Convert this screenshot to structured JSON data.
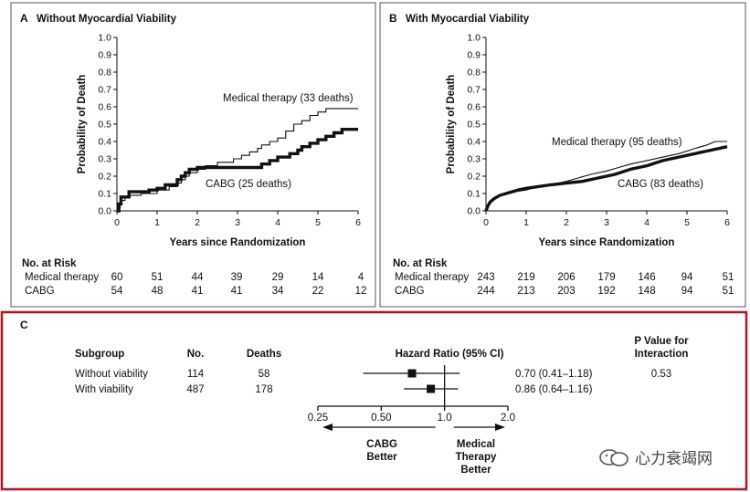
{
  "chart_data": [
    {
      "type": "line",
      "panel": "A",
      "title": "Without Myocardial Viability",
      "xlabel": "Years since Randomization",
      "ylabel": "Probability of Death",
      "xlim": [
        0,
        6
      ],
      "ylim": [
        0,
        1.0
      ],
      "x_ticks": [
        "0",
        "1",
        "2",
        "3",
        "4",
        "5",
        "6"
      ],
      "y_ticks": [
        "0.0",
        "0.1",
        "0.2",
        "0.3",
        "0.4",
        "0.5",
        "0.6",
        "0.7",
        "0.8",
        "0.9",
        "1.0"
      ],
      "series": [
        {
          "name": "Medical therapy",
          "label": "Medical therapy (33 deaths)",
          "style": "thin",
          "points": [
            [
              0,
              0
            ],
            [
              0.04,
              0
            ],
            [
              0.04,
              0.02
            ],
            [
              0.08,
              0.02
            ],
            [
              0.08,
              0.04
            ],
            [
              0.12,
              0.04
            ],
            [
              0.12,
              0.06
            ],
            [
              0.2,
              0.06
            ],
            [
              0.2,
              0.08
            ],
            [
              0.3,
              0.08
            ],
            [
              0.3,
              0.09
            ],
            [
              0.6,
              0.09
            ],
            [
              0.6,
              0.1
            ],
            [
              1.0,
              0.1
            ],
            [
              1.0,
              0.12
            ],
            [
              1.3,
              0.12
            ],
            [
              1.3,
              0.14
            ],
            [
              1.5,
              0.14
            ],
            [
              1.5,
              0.16
            ],
            [
              1.6,
              0.16
            ],
            [
              1.6,
              0.18
            ],
            [
              1.7,
              0.18
            ],
            [
              1.7,
              0.2
            ],
            [
              1.8,
              0.2
            ],
            [
              1.8,
              0.22
            ],
            [
              2.0,
              0.22
            ],
            [
              2.0,
              0.24
            ],
            [
              2.2,
              0.24
            ],
            [
              2.2,
              0.26
            ],
            [
              2.5,
              0.26
            ],
            [
              2.5,
              0.28
            ],
            [
              2.9,
              0.28
            ],
            [
              2.9,
              0.3
            ],
            [
              3.1,
              0.3
            ],
            [
              3.1,
              0.32
            ],
            [
              3.3,
              0.32
            ],
            [
              3.3,
              0.34
            ],
            [
              3.5,
              0.34
            ],
            [
              3.5,
              0.36
            ],
            [
              3.6,
              0.36
            ],
            [
              3.6,
              0.38
            ],
            [
              3.8,
              0.38
            ],
            [
              3.8,
              0.4
            ],
            [
              4.0,
              0.4
            ],
            [
              4.0,
              0.42
            ],
            [
              4.2,
              0.42
            ],
            [
              4.2,
              0.46
            ],
            [
              4.4,
              0.46
            ],
            [
              4.4,
              0.5
            ],
            [
              4.6,
              0.5
            ],
            [
              4.6,
              0.52
            ],
            [
              4.8,
              0.52
            ],
            [
              4.8,
              0.55
            ],
            [
              5.0,
              0.55
            ],
            [
              5.0,
              0.57
            ],
            [
              5.2,
              0.57
            ],
            [
              5.2,
              0.59
            ],
            [
              6.0,
              0.59
            ]
          ]
        },
        {
          "name": "CABG",
          "label": "CABG (25 deaths)",
          "style": "thick",
          "points": [
            [
              0,
              0
            ],
            [
              0.05,
              0
            ],
            [
              0.05,
              0.04
            ],
            [
              0.1,
              0.04
            ],
            [
              0.1,
              0.08
            ],
            [
              0.3,
              0.08
            ],
            [
              0.3,
              0.11
            ],
            [
              0.8,
              0.11
            ],
            [
              0.8,
              0.12
            ],
            [
              1.0,
              0.12
            ],
            [
              1.0,
              0.13
            ],
            [
              1.2,
              0.13
            ],
            [
              1.2,
              0.15
            ],
            [
              1.5,
              0.15
            ],
            [
              1.5,
              0.18
            ],
            [
              1.6,
              0.18
            ],
            [
              1.6,
              0.2
            ],
            [
              1.7,
              0.2
            ],
            [
              1.7,
              0.22
            ],
            [
              1.8,
              0.22
            ],
            [
              1.8,
              0.24
            ],
            [
              2.0,
              0.24
            ],
            [
              2.0,
              0.25
            ],
            [
              3.6,
              0.25
            ],
            [
              3.6,
              0.27
            ],
            [
              3.8,
              0.27
            ],
            [
              3.8,
              0.29
            ],
            [
              4.0,
              0.29
            ],
            [
              4.0,
              0.31
            ],
            [
              4.3,
              0.31
            ],
            [
              4.3,
              0.33
            ],
            [
              4.5,
              0.33
            ],
            [
              4.5,
              0.35
            ],
            [
              4.6,
              0.35
            ],
            [
              4.6,
              0.37
            ],
            [
              4.8,
              0.37
            ],
            [
              4.8,
              0.39
            ],
            [
              5.0,
              0.39
            ],
            [
              5.0,
              0.41
            ],
            [
              5.2,
              0.41
            ],
            [
              5.2,
              0.43
            ],
            [
              5.4,
              0.43
            ],
            [
              5.4,
              0.45
            ],
            [
              5.6,
              0.45
            ],
            [
              5.6,
              0.47
            ],
            [
              6.0,
              0.47
            ]
          ]
        }
      ],
      "risk_table": {
        "heading": "No. at Risk",
        "rows": [
          {
            "label": "Medical therapy",
            "values": [
              "60",
              "51",
              "44",
              "39",
              "29",
              "14",
              "4"
            ]
          },
          {
            "label": "CABG",
            "values": [
              "54",
              "48",
              "41",
              "41",
              "34",
              "22",
              "12"
            ]
          }
        ]
      }
    },
    {
      "type": "line",
      "panel": "B",
      "title": "With Myocardial Viability",
      "xlabel": "Years since Randomization",
      "ylabel": "Probability of Death",
      "xlim": [
        0,
        6
      ],
      "ylim": [
        0,
        1.0
      ],
      "x_ticks": [
        "0",
        "1",
        "2",
        "3",
        "4",
        "5",
        "6"
      ],
      "y_ticks": [
        "0.0",
        "0.1",
        "0.2",
        "0.3",
        "0.4",
        "0.5",
        "0.6",
        "0.7",
        "0.8",
        "0.9",
        "1.0"
      ],
      "series": [
        {
          "name": "Medical therapy",
          "label": "Medical therapy (95 deaths)",
          "style": "thin",
          "points": [
            [
              0,
              0
            ],
            [
              0.05,
              0.03
            ],
            [
              0.1,
              0.05
            ],
            [
              0.2,
              0.07
            ],
            [
              0.35,
              0.09
            ],
            [
              0.5,
              0.1
            ],
            [
              0.7,
              0.11
            ],
            [
              1.0,
              0.12
            ],
            [
              1.3,
              0.14
            ],
            [
              1.6,
              0.15
            ],
            [
              2.0,
              0.17
            ],
            [
              2.3,
              0.19
            ],
            [
              2.6,
              0.21
            ],
            [
              3.0,
              0.23
            ],
            [
              3.3,
              0.25
            ],
            [
              3.6,
              0.27
            ],
            [
              4.0,
              0.29
            ],
            [
              4.4,
              0.31
            ],
            [
              4.8,
              0.33
            ],
            [
              5.2,
              0.36
            ],
            [
              5.5,
              0.38
            ],
            [
              5.7,
              0.4
            ],
            [
              6.0,
              0.4
            ]
          ]
        },
        {
          "name": "CABG",
          "label": "CABG (83 deaths)",
          "style": "thick",
          "points": [
            [
              0,
              0
            ],
            [
              0.05,
              0.03
            ],
            [
              0.1,
              0.05
            ],
            [
              0.2,
              0.07
            ],
            [
              0.35,
              0.09
            ],
            [
              0.5,
              0.1
            ],
            [
              0.8,
              0.12
            ],
            [
              1.0,
              0.13
            ],
            [
              1.3,
              0.14
            ],
            [
              1.6,
              0.15
            ],
            [
              2.0,
              0.16
            ],
            [
              2.4,
              0.17
            ],
            [
              2.8,
              0.19
            ],
            [
              3.2,
              0.21
            ],
            [
              3.6,
              0.24
            ],
            [
              4.0,
              0.26
            ],
            [
              4.4,
              0.29
            ],
            [
              4.8,
              0.31
            ],
            [
              5.2,
              0.33
            ],
            [
              5.6,
              0.35
            ],
            [
              6.0,
              0.37
            ]
          ]
        }
      ],
      "risk_table": {
        "heading": "No. at Risk",
        "rows": [
          {
            "label": "Medical therapy",
            "values": [
              "243",
              "219",
              "206",
              "179",
              "146",
              "94",
              "51"
            ]
          },
          {
            "label": "CABG",
            "values": [
              "244",
              "213",
              "203",
              "192",
              "148",
              "94",
              "51"
            ]
          }
        ]
      }
    },
    {
      "type": "forest",
      "panel": "C",
      "headers": {
        "subgroup": "Subgroup",
        "no": "No.",
        "deaths": "Deaths",
        "hr": "Hazard Ratio (95% CI)",
        "p_line1": "P Value for",
        "p_line2": "Interaction"
      },
      "rows": [
        {
          "subgroup": "Without viability",
          "no": "114",
          "deaths": "58",
          "hr": 0.7,
          "lo": 0.41,
          "hi": 1.18,
          "hr_text": "0.70 (0.41–1.18)",
          "p": "0.53"
        },
        {
          "subgroup": "With viability",
          "no": "487",
          "deaths": "178",
          "hr": 0.86,
          "lo": 0.64,
          "hi": 1.16,
          "hr_text": "0.86 (0.64–1.16)",
          "p": ""
        }
      ],
      "axis": {
        "scale": "log",
        "ticks": [
          "0.25",
          "0.50",
          "1.0",
          "2.0"
        ],
        "range": [
          0.25,
          2.0
        ],
        "reference": 1.0
      },
      "left_label": [
        "CABG",
        "Better"
      ],
      "right_label": [
        "Medical",
        "Therapy",
        "Better"
      ]
    }
  ],
  "watermark": {
    "text": "心力衰竭网"
  }
}
